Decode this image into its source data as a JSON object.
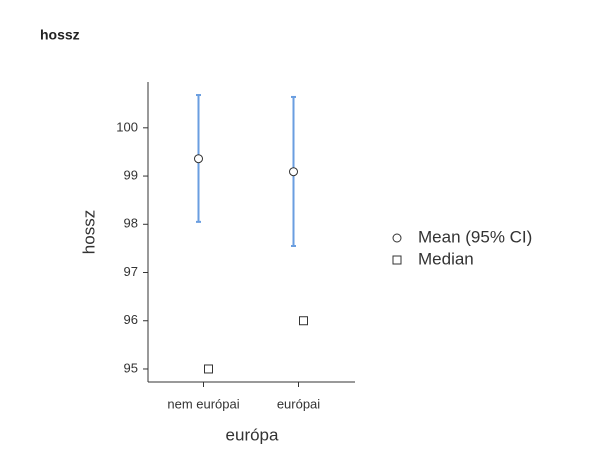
{
  "chart_data": {
    "type": "descriptives",
    "title": "hossz",
    "x_label": "európa",
    "y_label": "hossz",
    "categories": [
      "nem európai",
      "európai"
    ],
    "series": [
      {
        "name": "Mean (95% CI)",
        "marker": "circle",
        "color": "#ffffff",
        "error_color": "#6a9ee0",
        "values": [
          99.36,
          99.09
        ],
        "ci_lower": [
          98.05,
          97.55
        ],
        "ci_upper": [
          100.68,
          100.64
        ]
      },
      {
        "name": "Median",
        "marker": "square",
        "color": "#ffffff",
        "values": [
          95,
          96
        ]
      }
    ],
    "ylim": [
      94.73,
      100.95
    ],
    "yticks": [
      95,
      96,
      97,
      98,
      99,
      100
    ]
  }
}
